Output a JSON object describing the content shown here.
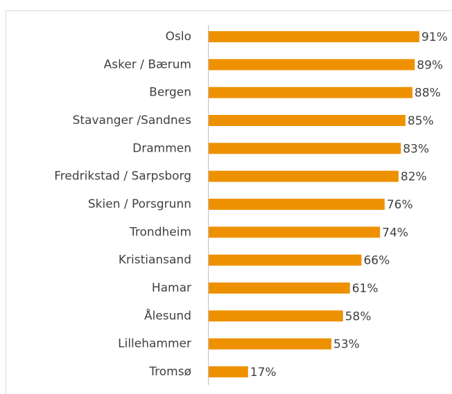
{
  "chart_data": {
    "type": "barh",
    "categories": [
      "Oslo",
      "Asker / Bærum",
      "Bergen",
      "Stavanger /Sandnes",
      "Drammen",
      "Fredrikstad / Sarpsborg",
      "Skien / Porsgrunn",
      "Trondheim",
      "Kristiansand",
      "Hamar",
      "Ålesund",
      "Lillehammer",
      "Tromsø"
    ],
    "values": [
      91,
      89,
      88,
      85,
      83,
      82,
      76,
      74,
      66,
      61,
      58,
      53,
      17
    ],
    "value_labels": [
      "91%",
      "89%",
      "88%",
      "85%",
      "83%",
      "82%",
      "76%",
      "74%",
      "66%",
      "61%",
      "58%",
      "53%",
      "17%"
    ],
    "color": "#ee9100"
  }
}
